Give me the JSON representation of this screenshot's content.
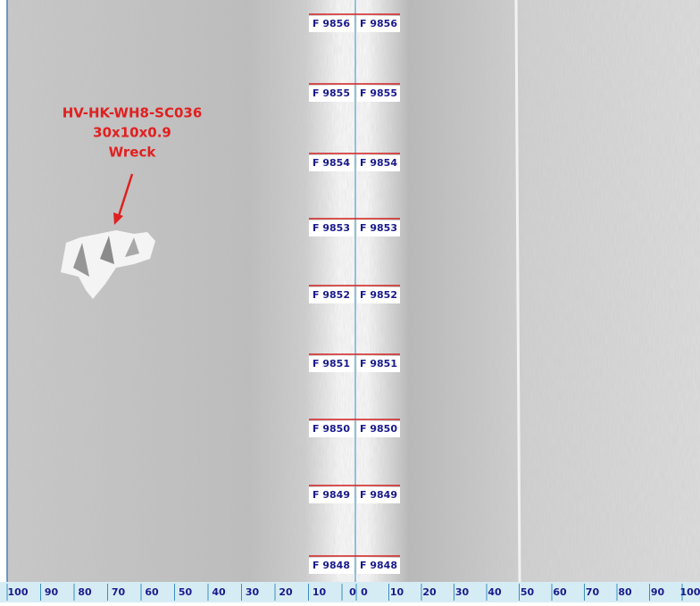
{
  "fix_marks": [
    {
      "left": "F 9856",
      "right": "F 9856"
    },
    {
      "left": "F 9855",
      "right": "F 9855"
    },
    {
      "left": "F 9854",
      "right": "F 9854"
    },
    {
      "left": "F 9853",
      "right": "F 9853"
    },
    {
      "left": "F 9852",
      "right": "F 9852"
    },
    {
      "left": "F 9851",
      "right": "F 9851"
    },
    {
      "left": "F 9850",
      "right": "F 9850"
    },
    {
      "left": "F 9849",
      "right": "F 9849"
    },
    {
      "left": "F 9848",
      "right": "F 9848"
    }
  ],
  "annotation": {
    "lines": [
      "HV-HK-WH8-SC036",
      "30x10x0.9",
      "Wreck"
    ]
  },
  "range_scale": {
    "port": [
      100,
      90,
      80,
      70,
      60,
      50,
      40,
      30,
      20,
      10,
      0
    ],
    "starboard": [
      0,
      10,
      20,
      30,
      40,
      50,
      60,
      70,
      80,
      90,
      100
    ]
  }
}
